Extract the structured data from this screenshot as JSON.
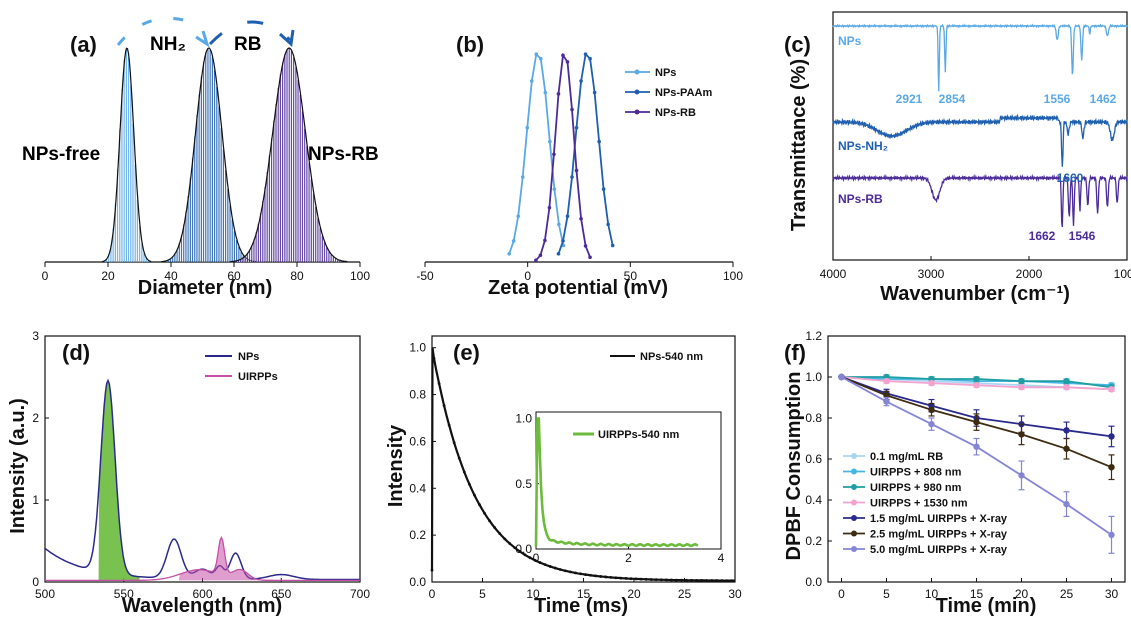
{
  "panels": {
    "a": "(a)",
    "b": "(b)",
    "c": "(c)",
    "d": "(d)",
    "e": "(e)",
    "f": "(f)"
  },
  "colors": {
    "light_blue": "#5aa9e6",
    "mid_blue": "#1f5fb0",
    "purple": "#4b2a9a",
    "navy": "#2b2a8c",
    "pink": "#c64fa7",
    "green": "#6cbb3c",
    "black": "#111111"
  },
  "chart_data": [
    {
      "id": "a",
      "type": "bar",
      "xlabel": "Diameter (nm)",
      "ylabel": "",
      "xlim": [
        0,
        100
      ],
      "xticks": [
        "0",
        "20",
        "40",
        "60",
        "80",
        "100"
      ],
      "series": [
        {
          "name": "NPs-free",
          "center": 26,
          "sigma": 2.2
        },
        {
          "name": "",
          "center": 52,
          "sigma": 4.2
        },
        {
          "name": "NPs-RB",
          "center": 77.5,
          "sigma": 5.2
        }
      ],
      "annotations": [
        "NPs-free",
        "NPs-RB",
        "NH₂",
        "RB"
      ]
    },
    {
      "id": "b",
      "type": "line",
      "xlabel": "Zeta potential (mV)",
      "ylabel": "",
      "xlim": [
        -50,
        100
      ],
      "xticks": [
        "-50",
        "0",
        "50",
        "100"
      ],
      "series": [
        {
          "name": "NPs",
          "center": 5,
          "sigma": 5.5
        },
        {
          "name": "NPs-PAAm",
          "center": 29,
          "sigma": 5.5
        },
        {
          "name": "NPs-RB",
          "center": 18,
          "sigma": 4.5
        }
      ]
    },
    {
      "id": "c",
      "type": "line",
      "xlabel": "Wavenumber (cm⁻¹)",
      "ylabel": "Transmittance (%)",
      "xlim": [
        4000,
        1000
      ],
      "xticks": [
        "4000",
        "3000",
        "2000",
        "1000"
      ],
      "series": [
        {
          "name": "NPs",
          "peaks": [
            2921,
            2854,
            1556,
            1462
          ]
        },
        {
          "name": "NPs-NH₂",
          "peaks": [
            1660
          ]
        },
        {
          "name": "NPs-RB",
          "peaks": [
            1662,
            1546
          ]
        }
      ],
      "peak_labels": [
        "2921",
        "2854",
        "1556",
        "1462",
        "1660",
        "1662",
        "1546"
      ]
    },
    {
      "id": "d",
      "type": "line",
      "xlabel": "Wavelength (nm)",
      "ylabel": "Intensity (a.u.)",
      "xlim": [
        500,
        700
      ],
      "ylim": [
        0,
        3
      ],
      "xticks": [
        "500",
        "550",
        "600",
        "650",
        "700"
      ],
      "yticks": [
        "0",
        "1",
        "2",
        "3"
      ],
      "series": [
        {
          "name": "NPs",
          "peaks": [
            [
              540,
              2.3
            ],
            [
              583,
              0.45
            ],
            [
              621,
              0.3
            ]
          ]
        },
        {
          "name": "UIRPPs",
          "peaks": [
            [
              612,
              0.5
            ]
          ]
        }
      ]
    },
    {
      "id": "e",
      "type": "line",
      "xlabel": "Time (ms)",
      "ylabel": "Intensity",
      "xlim": [
        0,
        30
      ],
      "ylim": [
        0,
        1.05
      ],
      "xticks": [
        "0",
        "5",
        "10",
        "15",
        "20",
        "25",
        "30"
      ],
      "yticks": [
        "0.0",
        "0.2",
        "0.4",
        "0.6",
        "0.8",
        "1.0"
      ],
      "series": [
        {
          "name": "NPs-540 nm",
          "tau": 4.2
        }
      ],
      "inset": {
        "xlim": [
          0,
          4
        ],
        "ylim": [
          0,
          1.05
        ],
        "xticks": [
          "0",
          "2",
          "4"
        ],
        "yticks": [
          "0.0",
          "0.5",
          "1.0"
        ],
        "series": [
          {
            "name": "UIRPPs-540 nm",
            "tau": 0.06
          }
        ]
      }
    },
    {
      "id": "f",
      "type": "line",
      "xlabel": "Time (min)",
      "ylabel": "DPBF Consumption",
      "xlim": [
        0,
        30
      ],
      "ylim": [
        0,
        1.2
      ],
      "xticks": [
        "0",
        "5",
        "10",
        "15",
        "20",
        "25",
        "30"
      ],
      "yticks": [
        "0.0",
        "0.2",
        "0.4",
        "0.6",
        "0.8",
        "1.0",
        "1.2"
      ],
      "x": [
        0,
        5,
        10,
        15,
        20,
        25,
        30
      ],
      "series": [
        {
          "name": "0.1 mg/mL RB",
          "values": [
            1.0,
            0.99,
            0.98,
            0.97,
            0.96,
            0.95,
            0.94
          ],
          "err": [
            0,
            0.01,
            0.01,
            0.01,
            0.01,
            0.01,
            0.01
          ]
        },
        {
          "name": "UIRPPS + 808 nm",
          "values": [
            1.0,
            0.99,
            0.99,
            0.98,
            0.98,
            0.97,
            0.96
          ],
          "err": [
            0,
            0.01,
            0.01,
            0.01,
            0.01,
            0.01,
            0.01
          ]
        },
        {
          "name": "UIRPPS + 980 nm",
          "values": [
            1.0,
            1.0,
            0.99,
            0.99,
            0.98,
            0.98,
            0.95
          ],
          "err": [
            0,
            0.01,
            0.01,
            0.01,
            0.01,
            0.01,
            0.01
          ]
        },
        {
          "name": "UIRPPS + 1530 nm",
          "values": [
            1.0,
            0.98,
            0.97,
            0.96,
            0.95,
            0.95,
            0.94
          ],
          "err": [
            0,
            0.01,
            0.01,
            0.01,
            0.01,
            0.01,
            0.01
          ]
        },
        {
          "name": "1.5 mg/mL UIRPPs + X-ray",
          "values": [
            1.0,
            0.92,
            0.86,
            0.8,
            0.77,
            0.74,
            0.71
          ],
          "err": [
            0,
            0.02,
            0.03,
            0.04,
            0.04,
            0.04,
            0.05
          ]
        },
        {
          "name": "2.5 mg/mL UIRPPs + X-ray",
          "values": [
            1.0,
            0.91,
            0.84,
            0.78,
            0.72,
            0.65,
            0.56
          ],
          "err": [
            0,
            0.02,
            0.03,
            0.04,
            0.05,
            0.05,
            0.06
          ]
        },
        {
          "name": "5.0 mg/mL UIRPPs + X-ray",
          "values": [
            1.0,
            0.88,
            0.77,
            0.66,
            0.52,
            0.38,
            0.23
          ],
          "err": [
            0,
            0.02,
            0.03,
            0.04,
            0.07,
            0.06,
            0.09
          ]
        }
      ]
    }
  ]
}
